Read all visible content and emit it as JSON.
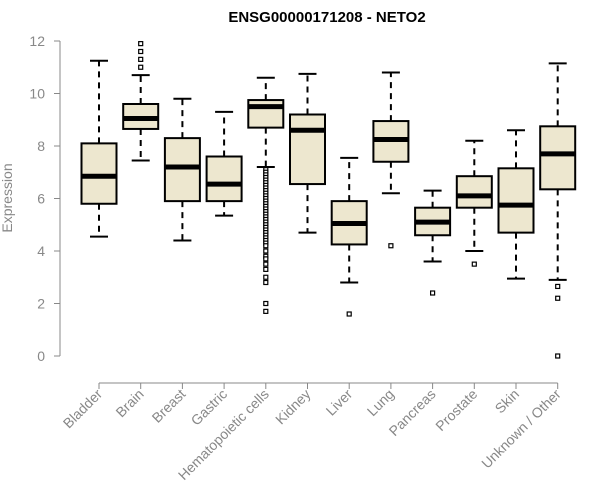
{
  "chart_data": {
    "type": "boxplot",
    "title": "ENSG00000171208 - NETO2",
    "xlabel": "",
    "ylabel": "Expression",
    "ylim": [
      0,
      12
    ],
    "yticks": [
      0,
      2,
      4,
      6,
      8,
      10,
      12
    ],
    "grid": false,
    "legend": "none",
    "colors": {
      "box_fill": "#ede7cf",
      "stroke": "#000000",
      "axis": "#888888"
    },
    "categories": [
      "Bladder",
      "Brain",
      "Breast",
      "Gastric",
      "Hematopoietic cells",
      "Kidney",
      "Liver",
      "Lung",
      "Pancreas",
      "Prostate",
      "Skin",
      "Unknown / Other"
    ],
    "boxes": [
      {
        "whisker_low": 4.55,
        "q1": 5.8,
        "median": 6.85,
        "q3": 8.1,
        "whisker_high": 11.25,
        "outliers": []
      },
      {
        "whisker_low": 7.45,
        "q1": 8.65,
        "median": 9.05,
        "q3": 9.6,
        "whisker_high": 10.7,
        "outliers": [
          11.0,
          11.3,
          11.6,
          11.9
        ]
      },
      {
        "whisker_low": 4.4,
        "q1": 5.9,
        "median": 7.2,
        "q3": 8.3,
        "whisker_high": 9.8,
        "outliers": []
      },
      {
        "whisker_low": 5.35,
        "q1": 5.9,
        "median": 6.55,
        "q3": 7.6,
        "whisker_high": 9.3,
        "outliers": []
      },
      {
        "whisker_low": 7.2,
        "q1": 8.7,
        "median": 9.5,
        "q3": 9.75,
        "whisker_high": 10.6,
        "outliers": [
          7.1,
          7.0,
          6.9,
          6.8,
          6.7,
          6.6,
          6.5,
          6.4,
          6.3,
          6.2,
          6.1,
          6.0,
          5.9,
          5.8,
          5.7,
          5.6,
          5.5,
          5.4,
          5.3,
          5.2,
          5.1,
          5.0,
          4.9,
          4.8,
          4.7,
          4.6,
          4.5,
          4.4,
          4.3,
          4.2,
          4.0,
          3.8,
          3.7,
          3.5,
          3.3,
          3.0,
          2.8,
          2.0,
          1.7
        ]
      },
      {
        "whisker_low": 4.7,
        "q1": 6.55,
        "median": 8.6,
        "q3": 9.2,
        "whisker_high": 10.75,
        "outliers": []
      },
      {
        "whisker_low": 2.8,
        "q1": 4.25,
        "median": 5.05,
        "q3": 5.9,
        "whisker_high": 7.55,
        "outliers": [
          1.6
        ]
      },
      {
        "whisker_low": 6.2,
        "q1": 7.4,
        "median": 8.25,
        "q3": 8.95,
        "whisker_high": 10.8,
        "outliers": [
          4.2
        ]
      },
      {
        "whisker_low": 3.6,
        "q1": 4.6,
        "median": 5.1,
        "q3": 5.65,
        "whisker_high": 6.3,
        "outliers": [
          2.4
        ]
      },
      {
        "whisker_low": 4.0,
        "q1": 5.65,
        "median": 6.1,
        "q3": 6.85,
        "whisker_high": 8.2,
        "outliers": [
          3.5
        ]
      },
      {
        "whisker_low": 2.95,
        "q1": 4.7,
        "median": 5.75,
        "q3": 7.15,
        "whisker_high": 8.6,
        "outliers": []
      },
      {
        "whisker_low": 2.9,
        "q1": 6.35,
        "median": 7.7,
        "q3": 8.75,
        "whisker_high": 11.15,
        "outliers": [
          2.65,
          2.2,
          0.0
        ]
      }
    ]
  }
}
